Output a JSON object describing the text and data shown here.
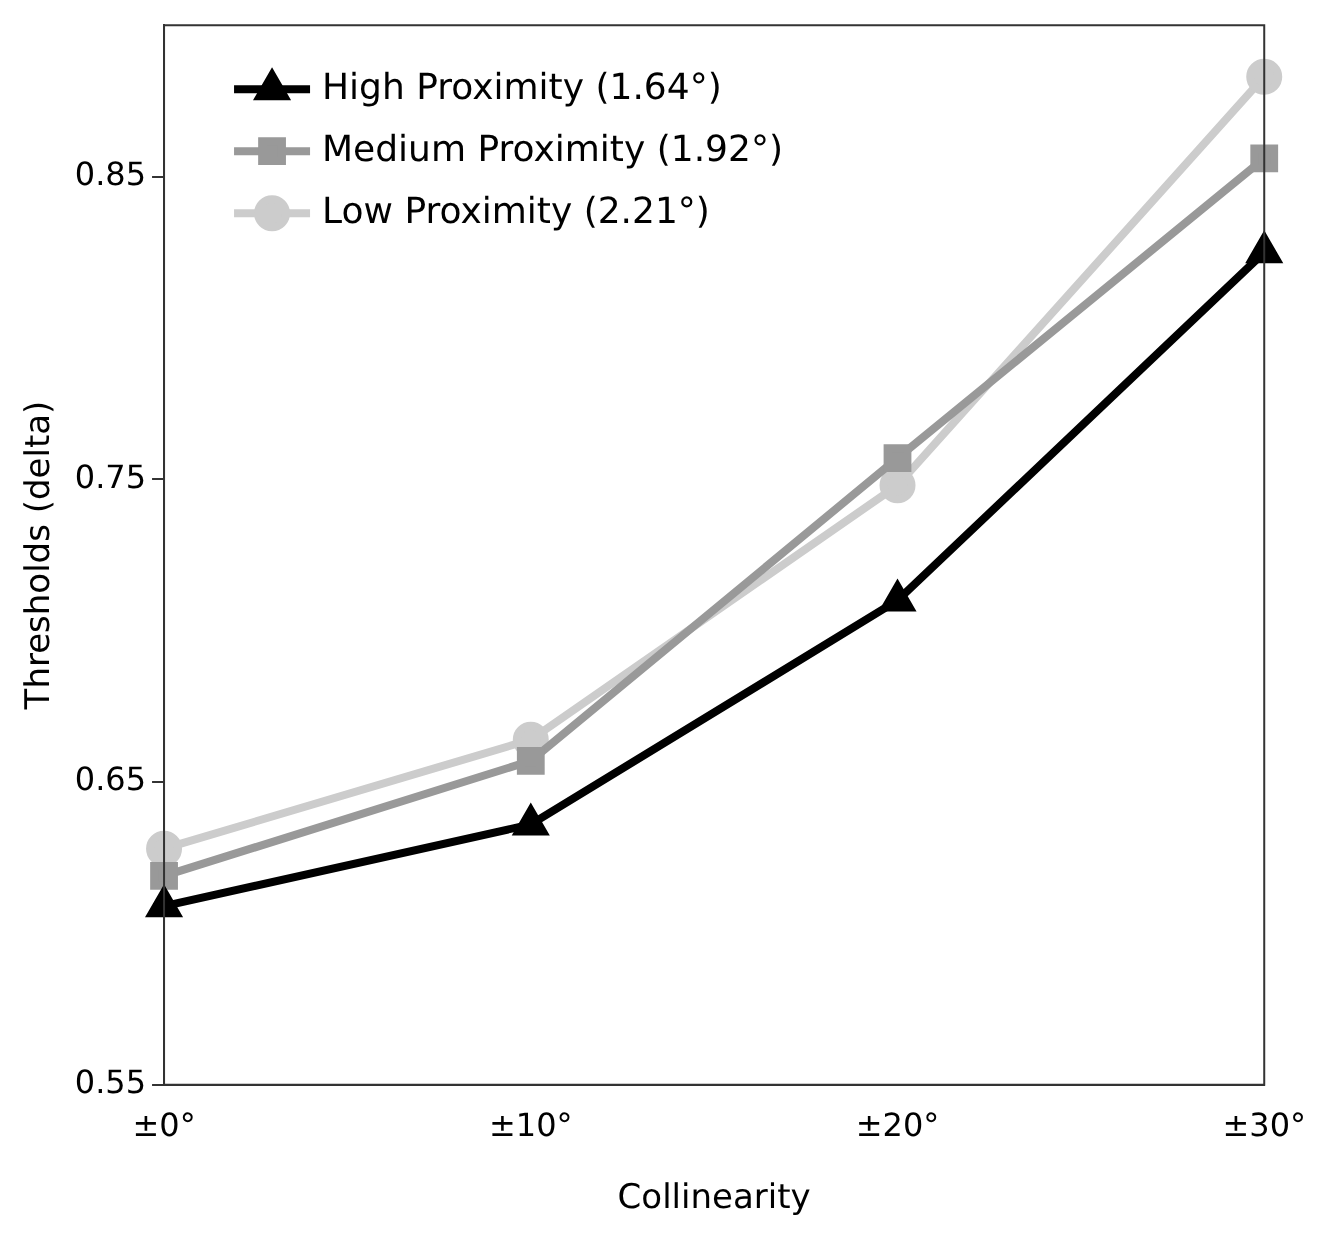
{
  "chart_data": {
    "type": "line",
    "xlabel": "Collinearity",
    "ylabel": "Thresholds (delta)",
    "categories": [
      "±0°",
      "±10°",
      "±20°",
      "±30°"
    ],
    "series": [
      {
        "name": "High Proximity (1.64°)",
        "color": "#000000",
        "marker": "triangle",
        "values": [
          0.609,
          0.636,
          0.71,
          0.825
        ]
      },
      {
        "name": "Medium Proximity (1.92°)",
        "color": "#999999",
        "marker": "square",
        "values": [
          0.619,
          0.657,
          0.757,
          0.856
        ]
      },
      {
        "name": "Low Proximity (2.21°)",
        "color": "#cccccc",
        "marker": "circle",
        "values": [
          0.628,
          0.664,
          0.748,
          0.883
        ]
      }
    ],
    "ylim": [
      0.55,
      0.9
    ],
    "yticks": [
      0.55,
      0.65,
      0.75,
      0.85
    ],
    "grid": false,
    "legend": "top left",
    "line_style": "solid"
  }
}
